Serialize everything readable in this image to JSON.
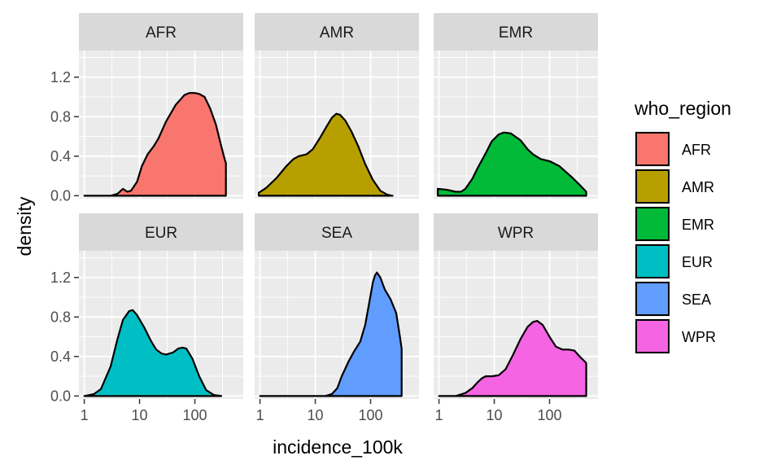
{
  "chart_data": {
    "type": "area",
    "x_scale": "log10",
    "xlabel": "incidence_100k",
    "ylabel": "density",
    "xlim": [
      0.8,
      750
    ],
    "ylim": [
      -0.03,
      1.47
    ],
    "x_ticks": [
      1,
      10,
      100
    ],
    "x_tick_labels": [
      "1",
      "10",
      "100"
    ],
    "y_ticks": [
      0,
      0.4,
      0.8,
      1.2
    ],
    "y_tick_labels": [
      "0.0",
      "0.4",
      "0.8",
      "1.2"
    ],
    "grid": true,
    "legend": {
      "title": "who_region",
      "position": "right",
      "entries": [
        "AFR",
        "AMR",
        "EMR",
        "EUR",
        "SEA",
        "WPR"
      ]
    },
    "facets": [
      {
        "name": "AFR",
        "color": "#F8766D",
        "points": [
          [
            1,
            0
          ],
          [
            3,
            0
          ],
          [
            4,
            0.02
          ],
          [
            5,
            0.07
          ],
          [
            6,
            0.04
          ],
          [
            7,
            0.05
          ],
          [
            9,
            0.14
          ],
          [
            11,
            0.3
          ],
          [
            14,
            0.42
          ],
          [
            18,
            0.5
          ],
          [
            22,
            0.58
          ],
          [
            30,
            0.75
          ],
          [
            45,
            0.92
          ],
          [
            65,
            1.02
          ],
          [
            80,
            1.04
          ],
          [
            100,
            1.04
          ],
          [
            120,
            1.03
          ],
          [
            150,
            1.0
          ],
          [
            190,
            0.88
          ],
          [
            240,
            0.72
          ],
          [
            300,
            0.5
          ],
          [
            350,
            0.36
          ],
          [
            365,
            0.33
          ]
        ]
      },
      {
        "name": "AMR",
        "color": "#B79F00",
        "points": [
          [
            0.95,
            0.03
          ],
          [
            1.3,
            0.08
          ],
          [
            2,
            0.18
          ],
          [
            3,
            0.3
          ],
          [
            4,
            0.37
          ],
          [
            5,
            0.4
          ],
          [
            7,
            0.42
          ],
          [
            9,
            0.47
          ],
          [
            12,
            0.58
          ],
          [
            16,
            0.7
          ],
          [
            20,
            0.79
          ],
          [
            24,
            0.83
          ],
          [
            28,
            0.82
          ],
          [
            35,
            0.76
          ],
          [
            45,
            0.65
          ],
          [
            60,
            0.5
          ],
          [
            80,
            0.32
          ],
          [
            110,
            0.16
          ],
          [
            150,
            0.05
          ],
          [
            200,
            0.01
          ],
          [
            250,
            0
          ]
        ]
      },
      {
        "name": "EMR",
        "color": "#00BA38",
        "points": [
          [
            0.95,
            0.07
          ],
          [
            1.4,
            0.06
          ],
          [
            2,
            0.04
          ],
          [
            2.5,
            0.04
          ],
          [
            3,
            0.07
          ],
          [
            4,
            0.17
          ],
          [
            5,
            0.28
          ],
          [
            7,
            0.43
          ],
          [
            9,
            0.55
          ],
          [
            12,
            0.62
          ],
          [
            15,
            0.64
          ],
          [
            20,
            0.63
          ],
          [
            30,
            0.56
          ],
          [
            40,
            0.47
          ],
          [
            50,
            0.42
          ],
          [
            70,
            0.37
          ],
          [
            100,
            0.35
          ],
          [
            150,
            0.3
          ],
          [
            250,
            0.19
          ],
          [
            350,
            0.11
          ],
          [
            460,
            0.04
          ]
        ]
      },
      {
        "name": "EUR",
        "color": "#00BFC4",
        "points": [
          [
            1,
            0
          ],
          [
            1.5,
            0.02
          ],
          [
            2,
            0.07
          ],
          [
            3,
            0.3
          ],
          [
            4,
            0.58
          ],
          [
            5,
            0.77
          ],
          [
            6.5,
            0.86
          ],
          [
            7.5,
            0.87
          ],
          [
            9,
            0.82
          ],
          [
            12,
            0.7
          ],
          [
            16,
            0.56
          ],
          [
            20,
            0.47
          ],
          [
            25,
            0.43
          ],
          [
            30,
            0.42
          ],
          [
            40,
            0.44
          ],
          [
            50,
            0.48
          ],
          [
            60,
            0.49
          ],
          [
            70,
            0.48
          ],
          [
            90,
            0.38
          ],
          [
            120,
            0.2
          ],
          [
            160,
            0.06
          ],
          [
            220,
            0.01
          ],
          [
            300,
            0
          ]
        ]
      },
      {
        "name": "SEA",
        "color": "#619CFF",
        "points": [
          [
            1,
            0
          ],
          [
            15,
            0
          ],
          [
            20,
            0.02
          ],
          [
            25,
            0.08
          ],
          [
            30,
            0.2
          ],
          [
            40,
            0.35
          ],
          [
            50,
            0.45
          ],
          [
            65,
            0.55
          ],
          [
            80,
            0.72
          ],
          [
            95,
            0.95
          ],
          [
            110,
            1.15
          ],
          [
            120,
            1.22
          ],
          [
            130,
            1.25
          ],
          [
            150,
            1.2
          ],
          [
            180,
            1.08
          ],
          [
            230,
            0.98
          ],
          [
            290,
            0.84
          ],
          [
            340,
            0.6
          ],
          [
            365,
            0.48
          ]
        ]
      },
      {
        "name": "WPR",
        "color": "#F564E3",
        "points": [
          [
            1,
            0
          ],
          [
            2,
            0
          ],
          [
            3,
            0.03
          ],
          [
            4,
            0.08
          ],
          [
            5,
            0.14
          ],
          [
            6,
            0.18
          ],
          [
            7,
            0.2
          ],
          [
            9,
            0.2
          ],
          [
            12,
            0.21
          ],
          [
            16,
            0.27
          ],
          [
            22,
            0.42
          ],
          [
            30,
            0.58
          ],
          [
            40,
            0.7
          ],
          [
            50,
            0.75
          ],
          [
            60,
            0.76
          ],
          [
            75,
            0.72
          ],
          [
            100,
            0.6
          ],
          [
            130,
            0.5
          ],
          [
            170,
            0.47
          ],
          [
            220,
            0.47
          ],
          [
            280,
            0.46
          ],
          [
            350,
            0.4
          ],
          [
            450,
            0.34
          ],
          [
            460,
            0.33
          ]
        ]
      }
    ]
  }
}
